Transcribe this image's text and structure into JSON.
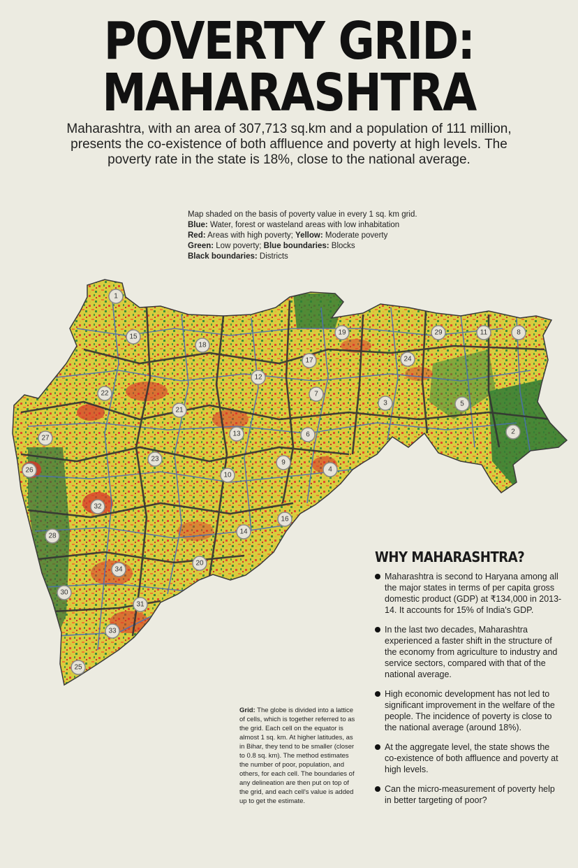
{
  "title": {
    "line1": "POVERTY GRID:",
    "line2": "MAHARASHTRA"
  },
  "intro": "Maharashtra, with an area of  307,713 sq.km and a population of 111 million, presents the co-existence of both affluence and poverty at high levels. The poverty rate in the state is 18%, close to the national average.",
  "legend": {
    "line1": "Map shaded on the basis of poverty value in every 1 sq. km grid.",
    "blue_label": "Blue:",
    "blue_text": " Water, forest or wasteland areas with low inhabitation",
    "red_label": "Red:",
    "red_text": " Areas with high poverty; ",
    "yellow_label": "Yellow:",
    "yellow_text": " Moderate poverty",
    "green_label": "Green:",
    "green_text": " Low poverty; ",
    "blueb_label": "Blue boundaries:",
    "blueb_text": " Blocks",
    "blackb_label": "Black boundaries:",
    "blackb_text": " Districts"
  },
  "map": {
    "district_markers": [
      "1",
      "15",
      "18",
      "19",
      "29",
      "11",
      "8",
      "24",
      "17",
      "12",
      "22",
      "21",
      "7",
      "3",
      "5",
      "2",
      "13",
      "6",
      "27",
      "23",
      "26",
      "9",
      "4",
      "10",
      "32",
      "16",
      "28",
      "14",
      "20",
      "34",
      "30",
      "31",
      "33",
      "25"
    ],
    "colors": {
      "high_poverty": "#d9342b",
      "moderate": "#e8d23a",
      "low": "#3f8f3a",
      "water_forest": "#3b6fb0",
      "district_boundary": "#333333",
      "block_boundary": "#4a6fb5"
    }
  },
  "grid_note": {
    "label": "Grid:",
    "text": " The globe is divided into a lattice of cells, which is together referred to as the grid. Each cell on the equator is almost 1 sq. km. At higher latitudes, as in Bihar, they tend to be smaller (closer to 0.8 sq. km). The method estimates the number of poor, population, and others, for each cell. The boundaries of any delineation are then put on top of the grid, and each cell's value is added up to get the estimate."
  },
  "why": {
    "heading": "WHY MAHARASHTRA?",
    "points": [
      "Maharashtra is second to Haryana among all the major states in terms of per capita gross domestic product (GDP) at ₹134,000 in 2013-14. It accounts for 15% of India's GDP.",
      "In the last two decades, Maharashtra experienced a faster shift in the structure of the economy from agriculture to industry and service sectors, compared with that of the national average.",
      "High economic development has not led to significant improvement in the welfare of the people. The incidence of poverty is close to the national average (around 18%).",
      "At the aggregate level, the state shows the co-existence of both affluence and poverty at high levels.",
      "Can the micro-measurement of poverty help in better targeting of poor?"
    ]
  }
}
